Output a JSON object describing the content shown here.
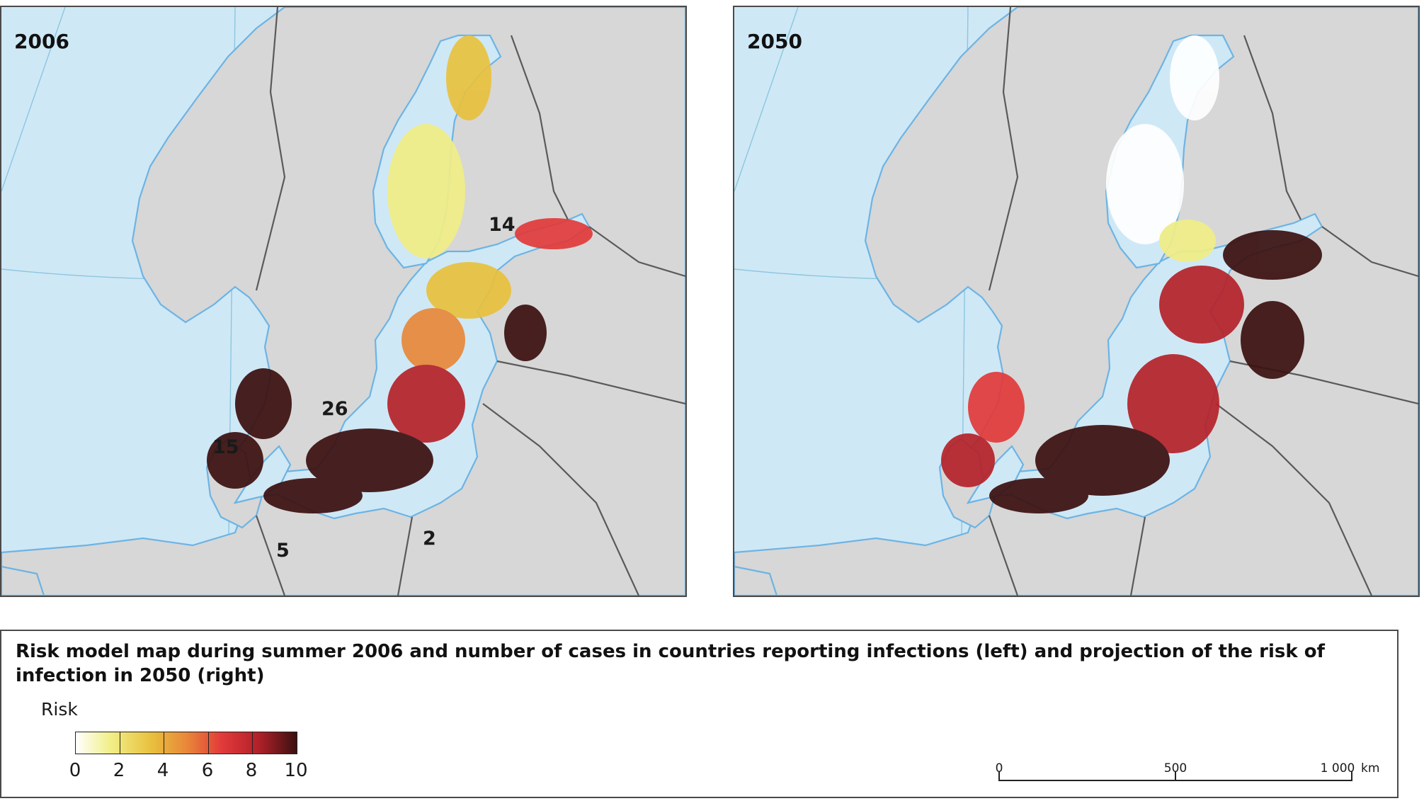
{
  "maps": [
    {
      "year_label": "2006",
      "scenario": "2006",
      "case_counts": [
        {
          "value": "14"
        },
        {
          "value": "26"
        },
        {
          "value": "15"
        },
        {
          "value": "5"
        },
        {
          "value": "2"
        }
      ]
    },
    {
      "year_label": "2050",
      "scenario": "2050",
      "case_counts": []
    }
  ],
  "legend": {
    "title": "Risk model map during summer 2006 and number of cases in countries reporting infections (left) and projection of the risk of infection in 2050 (right)",
    "risk_label": "Risk",
    "risk_ticks": [
      "0",
      "2",
      "4",
      "6",
      "8",
      "10"
    ],
    "risk_colors": [
      "#ffffff",
      "#f1ee86",
      "#e8c13e",
      "#e9883a",
      "#e23a3a",
      "#b5222a",
      "#3b1010"
    ],
    "scale_ticks": [
      "0",
      "500"
    ],
    "scale_max_label": "1 000",
    "scale_unit": "km"
  },
  "colors": {
    "sea": "#cfe8f6",
    "land": "#d7d7d7",
    "border": "#5a5a5a",
    "coast": "#6cb4e4",
    "graticule": "#8cc6de"
  }
}
